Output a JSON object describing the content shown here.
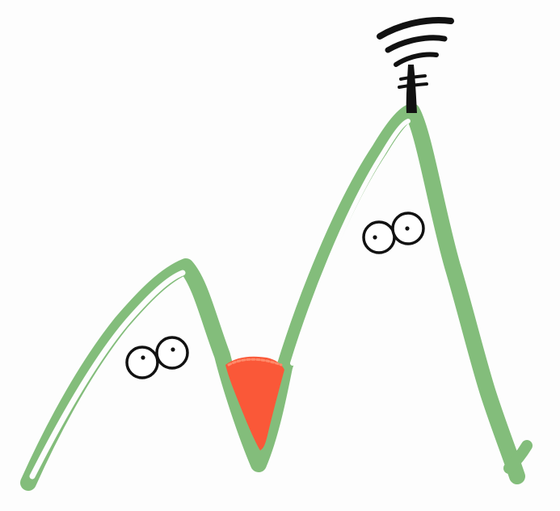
{
  "colors": {
    "background": "#fdfdfd",
    "mountain_outline": "#83bd7b",
    "lava": "#fa5838",
    "ink": "#111111"
  },
  "icons": {
    "left_mountain_eyes": "eyes-icon",
    "right_mountain_eyes": "eyes-icon",
    "antenna": "radio-antenna-icon",
    "lava": "lava-icon"
  }
}
